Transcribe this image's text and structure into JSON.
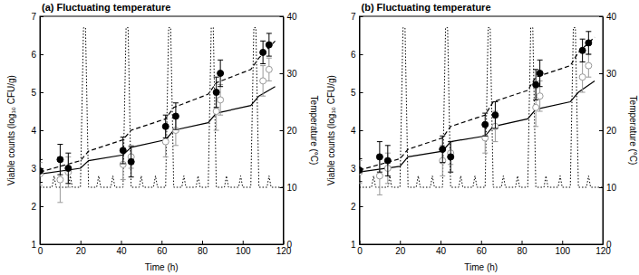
{
  "chart_data": [
    {
      "type": "line",
      "title": "(a) Fluctuating temperature",
      "x_label": "Time (h)",
      "y_label": "Viable counts (log₁₀ CFU/g)",
      "y2_label": "Temperature (°C)",
      "xlim": [
        0,
        120
      ],
      "xticks": [
        0,
        20,
        40,
        60,
        80,
        100,
        120
      ],
      "ylim": [
        1,
        7
      ],
      "yticks": [
        1,
        2,
        3,
        4,
        5,
        6,
        7
      ],
      "y2lim": [
        0,
        40
      ],
      "y2ticks": [
        0,
        10,
        20,
        30,
        40
      ],
      "grid": false,
      "series": [
        {
          "type": "line",
          "axis": "y2",
          "color": "#000000",
          "line_style": "dotted",
          "x": [
            0,
            6,
            7,
            8,
            14,
            15,
            16,
            20,
            21.5,
            22.5,
            24,
            28,
            29,
            30,
            35,
            36,
            37,
            41,
            42.5,
            43.5,
            45,
            49,
            50,
            51,
            56,
            57,
            58,
            62,
            63.5,
            64.5,
            66,
            70,
            71,
            72,
            77,
            78,
            79,
            83,
            84.5,
            85.5,
            87,
            91,
            92,
            93,
            98,
            99,
            100,
            104,
            105.5,
            106.5,
            108,
            112,
            113,
            114,
            120
          ],
          "values": [
            10,
            10,
            12,
            10,
            10,
            12,
            10,
            10,
            38,
            38,
            10,
            10,
            12,
            10,
            10,
            12,
            10,
            10,
            38,
            38,
            10,
            10,
            12,
            10,
            10,
            12,
            10,
            10,
            38,
            38,
            10,
            10,
            12,
            10,
            10,
            12,
            10,
            10,
            38,
            38,
            10,
            10,
            12,
            10,
            10,
            12,
            10,
            10,
            38,
            38,
            10,
            10,
            12,
            10,
            10
          ]
        },
        {
          "type": "line",
          "color": "#000000",
          "line_style": "dashed",
          "x": [
            0,
            20,
            24,
            41,
            45,
            62,
            66,
            83,
            87,
            104,
            108,
            116
          ],
          "values": [
            2.9,
            3.2,
            3.45,
            3.75,
            4.0,
            4.3,
            4.6,
            4.95,
            5.25,
            5.6,
            5.9,
            6.35
          ]
        },
        {
          "type": "line",
          "color": "#000000",
          "line_style": "solid",
          "x": [
            0,
            20,
            24,
            41,
            45,
            62,
            66,
            83,
            87,
            104,
            108,
            116
          ],
          "values": [
            2.85,
            3.0,
            3.2,
            3.35,
            3.55,
            3.75,
            4.0,
            4.2,
            4.45,
            4.65,
            4.9,
            5.15
          ]
        },
        {
          "type": "scatter",
          "color": "#999999",
          "marker": "open-circle",
          "x": [
            0,
            10,
            14,
            41,
            45,
            62,
            67,
            87,
            89,
            110,
            113
          ],
          "values": [
            2.85,
            2.7,
            2.9,
            3.1,
            3.3,
            3.7,
            4.0,
            4.5,
            4.8,
            5.3,
            5.6
          ],
          "errors": [
            0.3,
            0.6,
            0.4,
            0.4,
            0.3,
            0.4,
            0.4,
            0.5,
            0.4,
            0.4,
            0.3
          ]
        },
        {
          "type": "scatter",
          "color": "#000000",
          "marker": "circle",
          "x": [
            0,
            10,
            14,
            41,
            45,
            62,
            67,
            87,
            89,
            110,
            113
          ],
          "values": [
            2.93,
            3.23,
            3.0,
            3.47,
            3.17,
            4.1,
            4.37,
            5.0,
            5.5,
            6.05,
            6.25
          ],
          "errors": [
            0.3,
            0.4,
            0.4,
            0.35,
            0.4,
            0.3,
            0.35,
            0.4,
            0.35,
            0.3,
            0.3
          ]
        }
      ]
    },
    {
      "type": "line",
      "title": "(b) Fluctuating temperature",
      "x_label": "Time (h)",
      "y_label": "Viable counts (log₁₀ CFU/g)",
      "y2_label": "Temperature (°C)",
      "xlim": [
        0,
        120
      ],
      "xticks": [
        0,
        20,
        40,
        60,
        80,
        100,
        120
      ],
      "ylim": [
        1,
        7
      ],
      "yticks": [
        1,
        2,
        3,
        4,
        5,
        6,
        7
      ],
      "y2lim": [
        0,
        40
      ],
      "y2ticks": [
        0,
        10,
        20,
        30,
        40
      ],
      "grid": false,
      "series": [
        {
          "type": "line",
          "axis": "y2",
          "color": "#000000",
          "line_style": "dotted",
          "x": [
            0,
            6,
            7,
            8,
            14,
            15,
            16,
            20,
            21.5,
            22.5,
            24,
            28,
            29,
            30,
            35,
            36,
            37,
            41,
            42.5,
            43.5,
            45,
            49,
            50,
            51,
            56,
            57,
            58,
            62,
            63.5,
            64.5,
            66,
            70,
            71,
            72,
            77,
            78,
            79,
            83,
            84.5,
            85.5,
            87,
            91,
            92,
            93,
            98,
            99,
            100,
            104,
            105.5,
            106.5,
            108,
            112,
            113,
            114,
            120
          ],
          "values": [
            10,
            10,
            12,
            10,
            10,
            12,
            10,
            10,
            38,
            38,
            10,
            10,
            12,
            10,
            10,
            12,
            10,
            10,
            38,
            38,
            10,
            10,
            12,
            10,
            10,
            12,
            10,
            10,
            38,
            38,
            10,
            10,
            12,
            10,
            10,
            12,
            10,
            10,
            38,
            38,
            10,
            10,
            12,
            10,
            10,
            12,
            10,
            10,
            38,
            38,
            10,
            10,
            12,
            10,
            10
          ]
        },
        {
          "type": "line",
          "color": "#000000",
          "line_style": "dashed",
          "x": [
            0,
            20,
            24,
            41,
            45,
            62,
            66,
            83,
            87,
            104,
            108,
            116
          ],
          "values": [
            2.95,
            3.25,
            3.5,
            3.8,
            4.1,
            4.4,
            4.75,
            5.05,
            5.4,
            5.7,
            6.05,
            6.45
          ]
        },
        {
          "type": "line",
          "color": "#000000",
          "line_style": "solid",
          "x": [
            0,
            20,
            24,
            41,
            45,
            62,
            66,
            83,
            87,
            104,
            108,
            116
          ],
          "values": [
            2.9,
            3.05,
            3.3,
            3.45,
            3.7,
            3.85,
            4.1,
            4.3,
            4.55,
            4.75,
            5.0,
            5.3
          ]
        },
        {
          "type": "scatter",
          "color": "#999999",
          "marker": "open-circle",
          "x": [
            0,
            10,
            14,
            41,
            45,
            62,
            67,
            87,
            89,
            110,
            113
          ],
          "values": [
            2.9,
            2.8,
            3.0,
            3.2,
            3.4,
            3.8,
            4.1,
            4.6,
            4.9,
            5.4,
            5.7
          ],
          "errors": [
            0.3,
            0.5,
            0.4,
            0.4,
            0.3,
            0.4,
            0.4,
            0.5,
            0.4,
            0.4,
            0.3
          ]
        },
        {
          "type": "scatter",
          "color": "#000000",
          "marker": "circle",
          "x": [
            0,
            10,
            14,
            41,
            45,
            62,
            67,
            87,
            89,
            110,
            113
          ],
          "values": [
            2.95,
            3.3,
            3.2,
            3.5,
            3.3,
            4.15,
            4.4,
            5.2,
            5.5,
            6.1,
            6.3
          ],
          "errors": [
            0.3,
            0.4,
            0.4,
            0.35,
            0.4,
            0.3,
            0.35,
            0.4,
            0.35,
            0.3,
            0.3
          ]
        }
      ]
    }
  ]
}
